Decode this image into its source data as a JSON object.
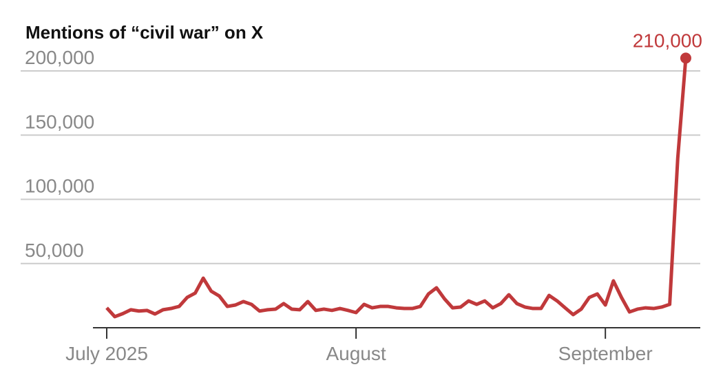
{
  "chart_data": {
    "type": "line",
    "title": "Mentions of “civil war” on X",
    "categories": [
      "July 2025",
      null,
      null,
      null,
      null,
      null,
      null,
      null,
      null,
      null,
      null,
      null,
      null,
      null,
      null,
      null,
      null,
      null,
      null,
      null,
      null,
      null,
      null,
      null,
      null,
      null,
      null,
      null,
      null,
      null,
      null,
      "August",
      null,
      null,
      null,
      null,
      null,
      null,
      null,
      null,
      null,
      null,
      null,
      null,
      null,
      null,
      null,
      null,
      null,
      null,
      null,
      null,
      null,
      null,
      null,
      null,
      null,
      null,
      null,
      null,
      null,
      null,
      "September",
      null,
      null,
      null,
      null,
      null,
      null,
      null,
      null,
      null,
      null
    ],
    "values": [
      15500,
      8600,
      11000,
      14000,
      13000,
      13500,
      10700,
      14000,
      15000,
      16600,
      23600,
      27000,
      38600,
      28400,
      24700,
      16600,
      17700,
      20400,
      18200,
      13000,
      14000,
      14500,
      18800,
      14500,
      14000,
      20400,
      13500,
      14500,
      13500,
      15000,
      13500,
      11800,
      18200,
      15500,
      16600,
      16600,
      15500,
      15000,
      15000,
      16600,
      26300,
      31100,
      22500,
      15500,
      16100,
      20900,
      18200,
      20900,
      15500,
      18800,
      25700,
      18800,
      16100,
      15000,
      15000,
      25200,
      20900,
      15500,
      10200,
      14500,
      23600,
      26300,
      17700,
      36500,
      23600,
      12300,
      14500,
      15500,
      15000,
      16100,
      18200,
      132000,
      210000
    ],
    "value_labels": [
      null,
      null,
      null,
      null,
      null,
      null,
      null,
      null,
      null,
      null,
      null,
      null,
      null,
      null,
      null,
      null,
      null,
      null,
      null,
      null,
      null,
      null,
      null,
      null,
      null,
      null,
      null,
      null,
      null,
      null,
      null,
      null,
      null,
      null,
      null,
      null,
      null,
      null,
      null,
      null,
      null,
      null,
      null,
      null,
      null,
      null,
      null,
      null,
      null,
      null,
      null,
      null,
      null,
      null,
      null,
      null,
      null,
      null,
      null,
      null,
      null,
      null,
      null,
      null,
      null,
      null,
      null,
      null,
      null,
      null,
      null,
      null,
      "210,000"
    ],
    "color": "#c0393b",
    "ylim": [
      0,
      200000
    ],
    "yticks": [
      {
        "value": 50000,
        "label": "50,000"
      },
      {
        "value": 100000,
        "label": "100,000"
      },
      {
        "value": 150000,
        "label": "150,000"
      },
      {
        "value": 200000,
        "label": "200,000"
      }
    ],
    "grid": true
  }
}
